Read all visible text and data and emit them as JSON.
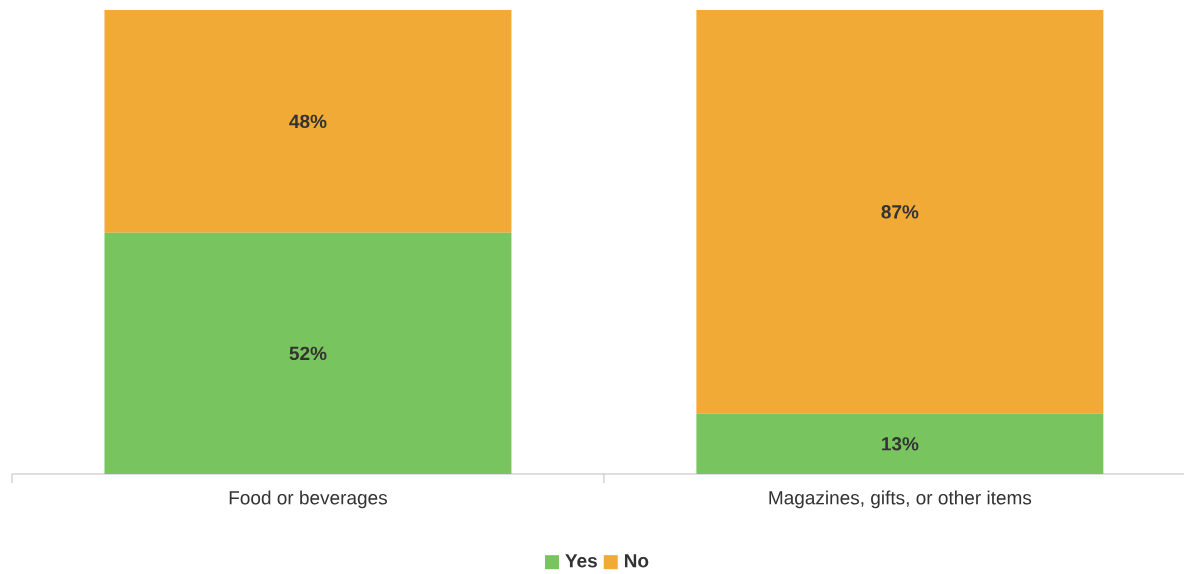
{
  "chart_data": {
    "type": "bar",
    "stacked": true,
    "categories": [
      "Food or beverages",
      "Magazines, gifts, or other items"
    ],
    "ylim": [
      0,
      100
    ],
    "legend": "bottom",
    "series": [
      {
        "name": "Yes",
        "color": "#78c45f",
        "values": [
          52,
          13
        ],
        "value_labels": [
          "52%",
          "13%"
        ]
      },
      {
        "name": "No",
        "color": "#f1aa35",
        "values": [
          48,
          87
        ],
        "value_labels": [
          "48%",
          "87%"
        ]
      }
    ]
  }
}
